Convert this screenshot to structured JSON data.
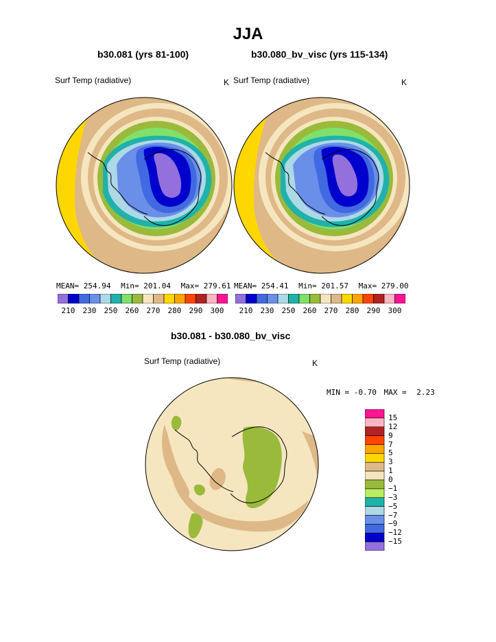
{
  "main_title": "JJA",
  "panels": [
    {
      "subtitle": "b30.081 (yrs 81-100)",
      "variable": "Surf Temp (radiative)",
      "units": "K",
      "stats": {
        "mean_label": "MEAN=",
        "mean": "254.94",
        "min_label": "Min=",
        "min": "201.04",
        "max_label": "Max=",
        "max": "279.61"
      }
    },
    {
      "subtitle": "b30.080_bv_visc (yrs 115-134)",
      "variable": "Surf Temp (radiative)",
      "units": "K",
      "stats": {
        "mean_label": "MEAN=",
        "mean": "254.41",
        "min_label": "Min=",
        "min": "201.57",
        "max_label": "Max=",
        "max": "279.00"
      }
    }
  ],
  "diff_panel": {
    "subtitle": "b30.081 - b30.080_bv_visc",
    "variable": "Surf Temp (radiative)",
    "units": "K",
    "minmax": {
      "min_label": "MIN =",
      "min": "-0.70",
      "max_label": "MAX =",
      "max": "2.23"
    }
  },
  "colors": {
    "abs_scale": [
      "#9370db",
      "#0000cd",
      "#4169e1",
      "#6a8fe8",
      "#add8e6",
      "#20b2aa",
      "#7fe06a",
      "#9aba3c",
      "#f5e6c0",
      "#deb887",
      "#ffd700",
      "#ffa500",
      "#ff4500",
      "#b22222",
      "#ffb6c1",
      "#ff1493"
    ],
    "diff_scale": [
      "#9370db",
      "#0000cd",
      "#4169e1",
      "#6a8fe8",
      "#add8e6",
      "#20b2aa",
      "#b8ee60",
      "#9aba3c",
      "#f5e6c0",
      "#deb887",
      "#ffd700",
      "#ffa500",
      "#ff4500",
      "#b22222",
      "#ffb6c1",
      "#ff1493"
    ]
  },
  "chart_data": [
    {
      "type": "heatmap",
      "title": "b30.081 (yrs 81-100)",
      "variable": "Surf Temp (radiative)",
      "units": "K",
      "projection": "south polar stereographic",
      "colorbar_ticks": [
        "210",
        "230",
        "250",
        "260",
        "270",
        "280",
        "290",
        "300"
      ],
      "mean": 254.94,
      "min": 201.04,
      "max": 279.61
    },
    {
      "type": "heatmap",
      "title": "b30.080_bv_visc (yrs 115-134)",
      "variable": "Surf Temp (radiative)",
      "units": "K",
      "projection": "south polar stereographic",
      "colorbar_ticks": [
        "210",
        "230",
        "250",
        "260",
        "270",
        "280",
        "290",
        "300"
      ],
      "mean": 254.41,
      "min": 201.57,
      "max": 279.0
    },
    {
      "type": "heatmap",
      "title": "b30.081 - b30.080_bv_visc",
      "variable": "Surf Temp (radiative)",
      "units": "K",
      "projection": "south polar stereographic",
      "colorbar_ticks": [
        "15",
        "12",
        "9",
        "7",
        "5",
        "3",
        "1",
        "0",
        "−1",
        "−3",
        "−5",
        "−7",
        "−9",
        "−12",
        "−15"
      ],
      "min": -0.7,
      "max": 2.23
    }
  ]
}
